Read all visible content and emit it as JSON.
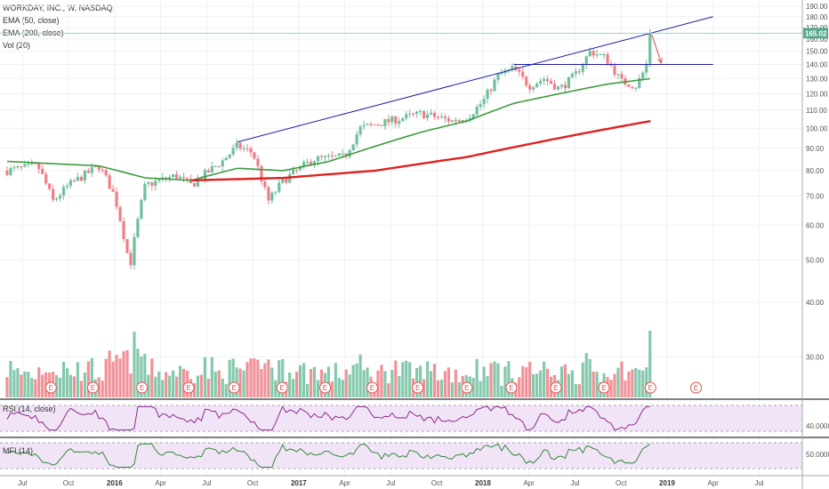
{
  "legend": {
    "symbol": "WORKDAY, INC., W, NASDAQ",
    "ema50": "EMA (50, close)",
    "ema200": "EMA (200, close)",
    "vol": "Vol (20)"
  },
  "panes": {
    "rsi_label": "RSI (14, close)",
    "rsi_value": "40.0000",
    "mfi_label": "MFI (14)",
    "mfi_value": "50.0000"
  },
  "colors": {
    "up": "#6fbf9e",
    "down": "#ef7f86",
    "ema50": "#3f9a3f",
    "ema200": "#e02020",
    "trendline": "#1a1aa8",
    "arrow": "#e05050",
    "pane_bg": "#f2e4f7",
    "oscillator": "#8a2b8a",
    "mfi_line": "#2f8a3a",
    "earnings": "#e05050"
  },
  "price_marker": "165.02",
  "earnings_label": "E",
  "chart_data": {
    "type": "candlestick",
    "title": "WORKDAY, INC., W, NASDAQ",
    "y_ticks": [
      "190.00",
      "180.00",
      "170.00",
      "160.00",
      "150.00",
      "140.00",
      "130.00",
      "120.00",
      "110.00",
      "100.00",
      "90.00",
      "80.00",
      "70.00",
      "60.00",
      "50.00",
      "40.00",
      "30.00"
    ],
    "x_ticks": [
      "Jul",
      "Oct",
      "2016",
      "Apr",
      "Jul",
      "Oct",
      "2017",
      "Apr",
      "Jul",
      "Oct",
      "2018",
      "Apr",
      "Jul",
      "Oct",
      "2019",
      "Apr",
      "Jul"
    ],
    "x_range": [
      "2015-06",
      "2019-09"
    ],
    "y_scale": "log",
    "y_range": [
      24,
      192
    ],
    "last_price": 165.02,
    "ohlc_anchors": [
      {
        "date": "2015-06",
        "close": 80
      },
      {
        "date": "2015-08",
        "close": 82
      },
      {
        "date": "2015-09",
        "close": 68
      },
      {
        "date": "2015-10",
        "close": 74
      },
      {
        "date": "2015-12",
        "close": 82
      },
      {
        "date": "2016-01",
        "close": 70
      },
      {
        "date": "2016-02",
        "close": 48
      },
      {
        "date": "2016-03",
        "close": 74
      },
      {
        "date": "2016-05",
        "close": 78
      },
      {
        "date": "2016-06",
        "close": 74
      },
      {
        "date": "2016-08",
        "close": 84
      },
      {
        "date": "2016-09",
        "close": 91
      },
      {
        "date": "2016-10",
        "close": 88
      },
      {
        "date": "2016-11",
        "close": 68
      },
      {
        "date": "2016-12",
        "close": 76
      },
      {
        "date": "2017-02",
        "close": 85
      },
      {
        "date": "2017-04",
        "close": 86
      },
      {
        "date": "2017-05",
        "close": 100
      },
      {
        "date": "2017-07",
        "close": 104
      },
      {
        "date": "2017-09",
        "close": 108
      },
      {
        "date": "2017-11",
        "close": 104
      },
      {
        "date": "2017-12",
        "close": 106
      },
      {
        "date": "2018-01",
        "close": 115
      },
      {
        "date": "2018-02",
        "close": 132
      },
      {
        "date": "2018-03",
        "close": 137
      },
      {
        "date": "2018-04",
        "close": 125
      },
      {
        "date": "2018-05",
        "close": 130
      },
      {
        "date": "2018-06",
        "close": 123
      },
      {
        "date": "2018-07",
        "close": 132
      },
      {
        "date": "2018-08",
        "close": 150
      },
      {
        "date": "2018-09",
        "close": 145
      },
      {
        "date": "2018-10",
        "close": 128
      },
      {
        "date": "2018-11",
        "close": 125
      },
      {
        "date": "2018-11-20",
        "close": 138
      },
      {
        "date": "2018-12-01",
        "close": 165.02
      }
    ],
    "ema50_anchors": [
      {
        "date": "2015-06",
        "value": 84
      },
      {
        "date": "2015-12",
        "value": 82
      },
      {
        "date": "2016-03",
        "value": 77
      },
      {
        "date": "2016-06",
        "value": 76
      },
      {
        "date": "2016-09",
        "value": 81
      },
      {
        "date": "2016-12",
        "value": 80
      },
      {
        "date": "2017-03",
        "value": 84
      },
      {
        "date": "2017-06",
        "value": 91
      },
      {
        "date": "2017-09",
        "value": 98
      },
      {
        "date": "2017-12",
        "value": 104
      },
      {
        "date": "2018-03",
        "value": 114
      },
      {
        "date": "2018-06",
        "value": 120
      },
      {
        "date": "2018-09",
        "value": 126
      },
      {
        "date": "2018-12-01",
        "value": 130
      }
    ],
    "ema200_anchors": [
      {
        "date": "2016-06",
        "value": 76
      },
      {
        "date": "2016-12",
        "value": 77
      },
      {
        "date": "2017-06",
        "value": 80
      },
      {
        "date": "2017-12",
        "value": 86
      },
      {
        "date": "2018-06",
        "value": 95
      },
      {
        "date": "2018-12-01",
        "value": 104
      }
    ],
    "rising_trendline": {
      "from": {
        "date": "2016-09",
        "value": 93
      },
      "to": {
        "date": "2019-04",
        "value": 180
      }
    },
    "horizontal_resistance": {
      "from": {
        "date": "2018-03",
        "value": 140
      },
      "to": {
        "date": "2019-04",
        "value": 140
      }
    },
    "projection_arrow": {
      "from": {
        "date": "2018-12-01",
        "value": 164
      },
      "to": {
        "date": "2018-12-20",
        "value": 141
      }
    },
    "earnings_dates": [
      "2015-08-27",
      "2015-11-19",
      "2016-02-25",
      "2016-05-26",
      "2016-08-25",
      "2016-11-29",
      "2017-02-23",
      "2017-05-25",
      "2017-08-24",
      "2017-11-30",
      "2018-02-27",
      "2018-05-24",
      "2018-08-28",
      "2018-11-29",
      "2019-02-28"
    ]
  }
}
